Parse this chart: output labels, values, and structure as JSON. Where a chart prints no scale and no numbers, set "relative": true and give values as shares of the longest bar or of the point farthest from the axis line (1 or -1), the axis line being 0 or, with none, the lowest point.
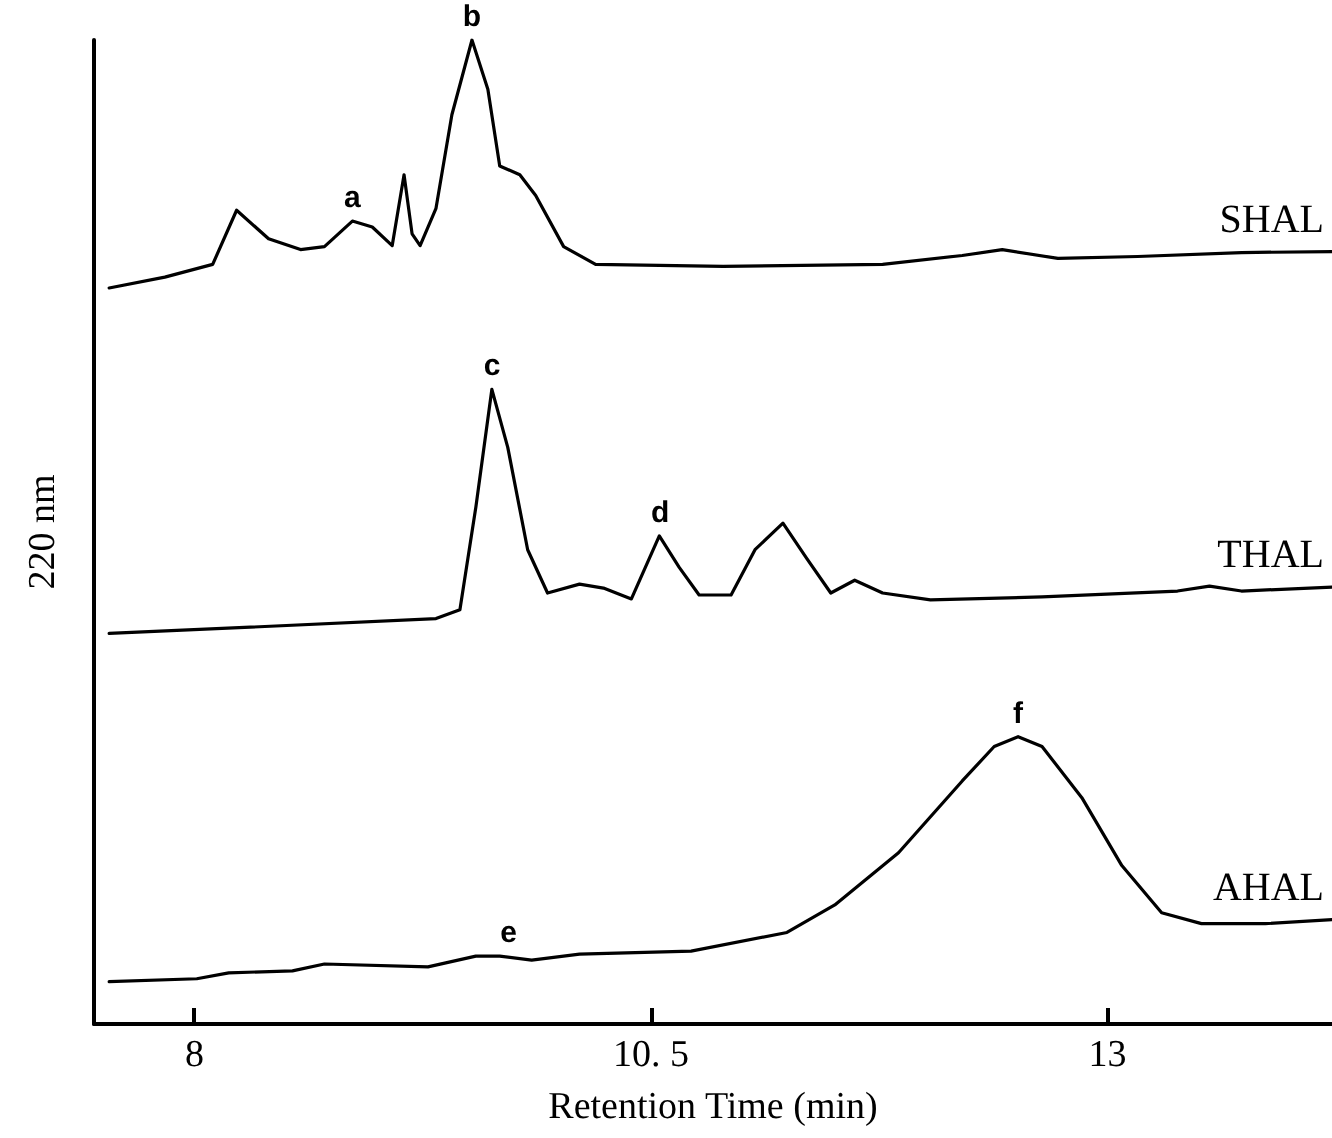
{
  "chart_data": {
    "type": "line",
    "relative": true,
    "xlabel": "Retention Time (min)",
    "ylabel": "220 nm",
    "xlim": [
      7.45,
      14.23
    ],
    "xticks": [
      8,
      {
        "value": 10.5,
        "label": "10. 5"
      },
      13
    ],
    "grid": false,
    "legend": false,
    "line_style": "solid",
    "series": [
      {
        "name": "SHAL",
        "color": "#000000",
        "x": [
          7.533,
          7.838,
          8.1,
          8.231,
          8.406,
          8.581,
          8.712,
          8.865,
          8.974,
          9.083,
          9.148,
          9.192,
          9.236,
          9.323,
          9.41,
          9.52,
          9.607,
          9.672,
          9.782,
          9.869,
          10.022,
          10.197,
          10.895,
          11.769,
          12.205,
          12.424,
          12.729,
          13.166,
          13.734,
          14.23
        ],
        "values": [
          0.748,
          0.759,
          0.772,
          0.827,
          0.798,
          0.787,
          0.79,
          0.816,
          0.81,
          0.791,
          0.863,
          0.803,
          0.791,
          0.829,
          0.924,
          1.0,
          0.95,
          0.872,
          0.863,
          0.842,
          0.79,
          0.772,
          0.77,
          0.772,
          0.781,
          0.787,
          0.778,
          0.78,
          0.784,
          0.785
        ]
      },
      {
        "name": "THAL",
        "color": "#000000",
        "x": [
          7.533,
          8.275,
          9.323,
          9.454,
          9.541,
          9.629,
          9.716,
          9.825,
          9.934,
          10.109,
          10.24,
          10.393,
          10.546,
          10.655,
          10.764,
          10.939,
          11.07,
          11.223,
          11.354,
          11.485,
          11.616,
          11.769,
          12.031,
          12.642,
          13.384,
          13.559,
          13.734,
          14.23
        ],
        "values": [
          0.397,
          0.403,
          0.412,
          0.421,
          0.525,
          0.645,
          0.586,
          0.482,
          0.438,
          0.447,
          0.443,
          0.432,
          0.496,
          0.464,
          0.436,
          0.436,
          0.482,
          0.509,
          0.473,
          0.438,
          0.451,
          0.438,
          0.431,
          0.434,
          0.44,
          0.445,
          0.44,
          0.444
        ]
      },
      {
        "name": "AHAL",
        "color": "#000000",
        "x": [
          7.533,
          8.013,
          8.188,
          8.537,
          8.712,
          9.279,
          9.541,
          9.672,
          9.847,
          10.109,
          10.72,
          11.245,
          11.507,
          11.856,
          12.205,
          12.38,
          12.511,
          12.642,
          12.86,
          13.079,
          13.297,
          13.515,
          13.865,
          14.23
        ],
        "values": [
          0.043,
          0.046,
          0.052,
          0.054,
          0.061,
          0.058,
          0.069,
          0.069,
          0.065,
          0.071,
          0.074,
          0.093,
          0.121,
          0.174,
          0.247,
          0.282,
          0.292,
          0.282,
          0.23,
          0.161,
          0.113,
          0.102,
          0.102,
          0.106
        ]
      }
    ],
    "annotations": [
      {
        "text": "a",
        "x": 8.865,
        "y": 0.816
      },
      {
        "text": "b",
        "x": 9.52,
        "y": 1.0
      },
      {
        "text": "c",
        "x": 9.63,
        "y": 0.645
      },
      {
        "text": "d",
        "x": 10.55,
        "y": 0.496
      },
      {
        "text": "e",
        "x": 9.72,
        "y": 0.069
      },
      {
        "text": "f",
        "x": 12.51,
        "y": 0.292
      }
    ]
  }
}
